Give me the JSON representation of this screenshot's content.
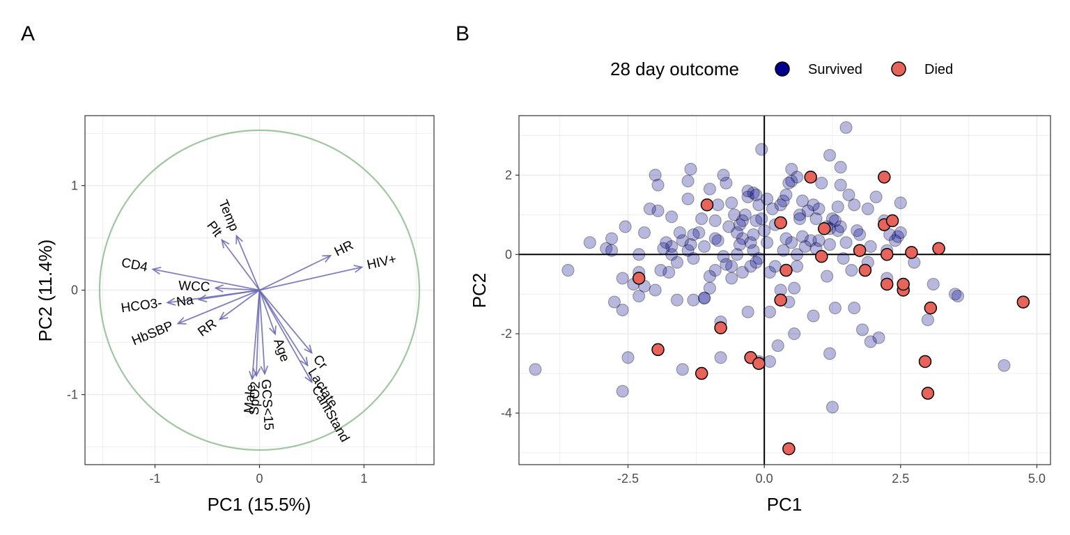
{
  "panels": {
    "a": {
      "tag": "A",
      "xlabel": "PC1 (15.5%)",
      "ylabel": "PC2 (11.4%)"
    },
    "b": {
      "tag": "B",
      "xlabel": "PC1",
      "ylabel": "PC2"
    }
  },
  "legend": {
    "title": "28 day outcome",
    "items": [
      {
        "label": "Survived",
        "color": "#00008B"
      },
      {
        "label": "Died",
        "color": "#E8645A"
      }
    ]
  },
  "colors": {
    "arrow": "#6A6AB4",
    "circle": "#8FBC8F",
    "axis_line": "#000000",
    "grid": "#EBEBEB",
    "survived_fill": "#00008B",
    "died_fill": "#E8645A"
  },
  "chart_data": [
    {
      "type": "scatter",
      "subtype": "pca-variable-loadings",
      "xlim": [
        -1.67,
        1.67
      ],
      "ylim": [
        -1.67,
        1.67
      ],
      "xticks": [
        -1,
        0,
        1
      ],
      "yticks": [
        -1,
        0,
        1
      ],
      "circle_radius": 1.53,
      "grid": true,
      "variables": [
        {
          "name": "CD4",
          "x": -1.02,
          "y": 0.2
        },
        {
          "name": "WCC",
          "x": -0.42,
          "y": 0.02
        },
        {
          "name": "HCO3-",
          "x": -0.88,
          "y": -0.12
        },
        {
          "name": "Na",
          "x": -0.58,
          "y": -0.09
        },
        {
          "name": "HbSBP",
          "x": -0.78,
          "y": -0.32
        },
        {
          "name": "RR",
          "x": -0.38,
          "y": -0.28
        },
        {
          "name": "Plt",
          "x": -0.36,
          "y": 0.48
        },
        {
          "name": "Temp",
          "x": -0.22,
          "y": 0.52
        },
        {
          "name": "HR",
          "x": 0.68,
          "y": 0.33
        },
        {
          "name": "HIV+",
          "x": 0.98,
          "y": 0.22
        },
        {
          "name": "Age",
          "x": 0.15,
          "y": -0.42
        },
        {
          "name": "Cr",
          "x": 0.5,
          "y": -0.6
        },
        {
          "name": "Lactate",
          "x": 0.46,
          "y": -0.72
        },
        {
          "name": "CantStand",
          "x": 0.5,
          "y": -0.88
        },
        {
          "name": "Male",
          "x": -0.07,
          "y": -0.85
        },
        {
          "name": "SpO2",
          "x": -0.03,
          "y": -0.82
        },
        {
          "name": "GCS<15",
          "x": 0.05,
          "y": -0.8
        }
      ]
    },
    {
      "type": "scatter",
      "xlim": [
        -4.5,
        5.25
      ],
      "ylim": [
        -5.3,
        3.5
      ],
      "xticks": [
        -2.5,
        0.0,
        2.5,
        5.0
      ],
      "xtick_labels": [
        "-2.5",
        "0.0",
        "2.5",
        "5.0"
      ],
      "yticks": [
        -4,
        -2,
        0,
        2
      ],
      "grid": true,
      "reference_lines": {
        "x": 0,
        "y": 0
      },
      "series": [
        {
          "name": "Survived",
          "points": [
            [
              -4.2,
              -2.9
            ],
            [
              -3.6,
              -0.4
            ],
            [
              -3.2,
              0.3
            ],
            [
              -2.9,
              0.15
            ],
            [
              -2.8,
              0.4
            ],
            [
              -2.8,
              0.1
            ],
            [
              -2.75,
              -1.2
            ],
            [
              -2.55,
              0.7
            ],
            [
              -2.6,
              -0.6
            ],
            [
              -2.6,
              -1.4
            ],
            [
              -2.5,
              -2.6
            ],
            [
              -2.6,
              -3.45
            ],
            [
              -2.3,
              0.0
            ],
            [
              -2.2,
              0.55
            ],
            [
              -2.3,
              -1.05
            ],
            [
              -2.2,
              -0.8
            ],
            [
              -2.1,
              1.15
            ],
            [
              -2.0,
              2.0
            ],
            [
              -1.95,
              1.75
            ],
            [
              -1.95,
              1.1
            ],
            [
              -1.9,
              -0.4
            ],
            [
              -2.0,
              -0.9
            ],
            [
              -1.8,
              0.3
            ],
            [
              -1.7,
              0.0
            ],
            [
              -1.7,
              0.2
            ],
            [
              -1.6,
              -0.2
            ],
            [
              -1.6,
              -1.15
            ],
            [
              -1.5,
              0.35
            ],
            [
              -1.4,
              0.1
            ],
            [
              -1.35,
              0.25
            ],
            [
              -1.7,
              0.95
            ],
            [
              -1.55,
              0.55
            ],
            [
              -1.4,
              1.4
            ],
            [
              -1.4,
              1.85
            ],
            [
              -1.35,
              2.15
            ],
            [
              -1.3,
              -0.1
            ],
            [
              -1.2,
              0.55
            ],
            [
              -1.15,
              0.9
            ],
            [
              -1.1,
              0.2
            ],
            [
              -1.0,
              1.65
            ],
            [
              -1.0,
              -0.85
            ],
            [
              -0.9,
              0.4
            ],
            [
              -0.9,
              -0.4
            ],
            [
              -0.8,
              -1.7
            ],
            [
              -0.8,
              -2.6
            ],
            [
              -1.1,
              -1.1
            ],
            [
              -1.3,
              -1.15
            ],
            [
              -1.5,
              -2.9
            ],
            [
              -1.0,
              -0.55
            ],
            [
              -0.85,
              1.25
            ],
            [
              -0.75,
              2.0
            ],
            [
              -0.7,
              1.8
            ],
            [
              -0.7,
              -0.25
            ],
            [
              -0.6,
              1.3
            ],
            [
              -0.5,
              0.0
            ],
            [
              -0.45,
              0.75
            ],
            [
              -0.4,
              0.4
            ],
            [
              -0.4,
              -0.45
            ],
            [
              -0.35,
              1.0
            ],
            [
              -0.3,
              1.45
            ],
            [
              -0.3,
              -1.45
            ],
            [
              -0.25,
              0.3
            ],
            [
              -0.2,
              0.1
            ],
            [
              -0.1,
              -0.1
            ],
            [
              -0.1,
              1.25
            ],
            [
              -0.05,
              0.9
            ],
            [
              -0.05,
              2.65
            ],
            [
              -0.1,
              -2.7
            ],
            [
              0.0,
              0.6
            ],
            [
              0.05,
              1.4
            ],
            [
              0.1,
              -0.45
            ],
            [
              0.1,
              -1.45
            ],
            [
              -0.3,
              1.6
            ],
            [
              -0.2,
              1.55
            ],
            [
              -0.15,
              0.85
            ],
            [
              -0.5,
              0.55
            ],
            [
              -0.6,
              -0.6
            ],
            [
              -0.55,
              1.0
            ],
            [
              -0.25,
              -0.3
            ],
            [
              0.2,
              -0.3
            ],
            [
              0.2,
              0.75
            ],
            [
              0.25,
              -2.3
            ],
            [
              0.3,
              1.25
            ],
            [
              0.35,
              1.35
            ],
            [
              0.4,
              1.5
            ],
            [
              0.4,
              0.4
            ],
            [
              0.45,
              1.8
            ],
            [
              0.5,
              2.15
            ],
            [
              0.5,
              0.3
            ],
            [
              0.55,
              -0.85
            ],
            [
              0.5,
              1.85
            ],
            [
              0.6,
              0.0
            ],
            [
              0.6,
              1.95
            ],
            [
              0.65,
              1.0
            ],
            [
              0.7,
              0.45
            ],
            [
              0.75,
              0.2
            ],
            [
              0.8,
              1.1
            ],
            [
              0.85,
              0.35
            ],
            [
              0.9,
              1.25
            ],
            [
              1.0,
              1.15
            ],
            [
              1.05,
              1.8
            ],
            [
              1.15,
              0.7
            ],
            [
              1.2,
              2.5
            ],
            [
              1.25,
              0.9
            ],
            [
              1.3,
              0.85
            ],
            [
              1.3,
              -1.35
            ],
            [
              1.4,
              0.7
            ],
            [
              1.35,
              0.6
            ],
            [
              1.35,
              1.2
            ],
            [
              1.4,
              1.75
            ],
            [
              1.5,
              0.3
            ],
            [
              1.55,
              1.5
            ],
            [
              1.6,
              -0.4
            ],
            [
              1.65,
              -1.35
            ],
            [
              1.7,
              0.6
            ],
            [
              1.75,
              0.5
            ],
            [
              1.9,
              -0.2
            ],
            [
              1.95,
              0.2
            ],
            [
              2.05,
              1.45
            ],
            [
              2.1,
              -2.1
            ],
            [
              2.2,
              0.85
            ],
            [
              2.25,
              0.1
            ],
            [
              2.3,
              0.5
            ],
            [
              2.4,
              0.35
            ],
            [
              2.45,
              0.45
            ],
            [
              2.5,
              1.3
            ],
            [
              2.55,
              -0.85
            ],
            [
              3.0,
              -1.65
            ],
            [
              3.1,
              -0.75
            ],
            [
              3.5,
              -1.0
            ],
            [
              3.55,
              -1.05
            ],
            [
              4.4,
              -2.8
            ],
            [
              0.1,
              -2.7
            ],
            [
              0.55,
              -2.0
            ],
            [
              1.2,
              -2.5
            ],
            [
              1.25,
              -3.85
            ],
            [
              1.5,
              3.2
            ],
            [
              1.4,
              2.2
            ],
            [
              1.2,
              0.25
            ],
            [
              -0.9,
              0.85
            ],
            [
              -0.6,
              -0.3
            ],
            [
              -1.3,
              0.5
            ],
            [
              -1.75,
              -0.45
            ],
            [
              -2.3,
              -0.45
            ],
            [
              -1.85,
              0.15
            ],
            [
              -0.15,
              1.5
            ],
            [
              0.95,
              0.9
            ],
            [
              1.0,
              0.35
            ],
            [
              -0.4,
              0.85
            ],
            [
              -0.15,
              -0.2
            ],
            [
              0.35,
              0.1
            ],
            [
              0.6,
              -0.3
            ],
            [
              1.2,
              0.65
            ],
            [
              -1.1,
              -1.1
            ],
            [
              -2.4,
              -0.75
            ],
            [
              1.95,
              -2.2
            ],
            [
              2.25,
              -0.6
            ],
            [
              2.5,
              0.55
            ],
            [
              0.45,
              -1.2
            ],
            [
              -0.2,
              0.5
            ],
            [
              0.7,
              1.35
            ],
            [
              0.95,
              0.15
            ],
            [
              1.9,
              1.15
            ],
            [
              1.8,
              -1.9
            ],
            [
              2.75,
              -0.2
            ],
            [
              1.65,
              1.25
            ],
            [
              0.9,
              -1.55
            ],
            [
              -0.45,
              0.25
            ],
            [
              1.45,
              -0.1
            ],
            [
              -0.75,
              -0.05
            ],
            [
              1.15,
              -0.55
            ],
            [
              -0.85,
              0.35
            ],
            [
              0.05,
              0.3
            ],
            [
              0.65,
              0.9
            ],
            [
              0.15,
              1.15
            ],
            [
              -0.65,
              0.7
            ],
            [
              0.3,
              -0.9
            ]
          ]
        },
        {
          "name": "Died",
          "points": [
            [
              -2.3,
              -0.6
            ],
            [
              -1.95,
              -2.4
            ],
            [
              -1.15,
              -3.0
            ],
            [
              -1.05,
              1.25
            ],
            [
              -0.8,
              -1.85
            ],
            [
              -0.25,
              -2.6
            ],
            [
              -0.1,
              -2.75
            ],
            [
              0.3,
              0.8
            ],
            [
              0.3,
              -1.15
            ],
            [
              0.4,
              -0.4
            ],
            [
              0.45,
              -4.9
            ],
            [
              0.85,
              1.95
            ],
            [
              1.05,
              -0.05
            ],
            [
              1.1,
              0.65
            ],
            [
              1.75,
              0.1
            ],
            [
              1.85,
              -0.4
            ],
            [
              2.2,
              0.75
            ],
            [
              2.2,
              1.95
            ],
            [
              2.25,
              -0.75
            ],
            [
              2.25,
              0.0
            ],
            [
              2.35,
              0.85
            ],
            [
              2.55,
              -0.9
            ],
            [
              2.55,
              -0.75
            ],
            [
              2.7,
              0.05
            ],
            [
              2.95,
              -2.7
            ],
            [
              3.0,
              -3.5
            ],
            [
              3.05,
              -1.35
            ],
            [
              3.2,
              0.15
            ],
            [
              4.75,
              -1.2
            ]
          ]
        }
      ]
    }
  ]
}
